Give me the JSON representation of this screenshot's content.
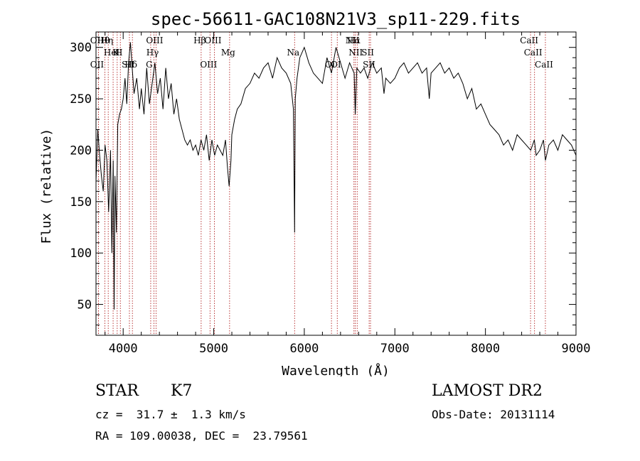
{
  "chart_data": {
    "type": "line",
    "title": "spec-56611-GAC108N21V3_sp11-229.fits",
    "xlabel": "Wavelength (Å)",
    "ylabel": "Flux (relative)",
    "xlim": [
      3700,
      9000
    ],
    "ylim": [
      20,
      315
    ],
    "xticks": [
      4000,
      5000,
      6000,
      7000,
      8000,
      9000
    ],
    "yticks": [
      50,
      100,
      150,
      200,
      250,
      300
    ],
    "grid": false,
    "line_color": "#000000",
    "marker_color": "#b22222",
    "spectrum": {
      "x": [
        3700,
        3720,
        3740,
        3760,
        3780,
        3800,
        3820,
        3840,
        3860,
        3875,
        3890,
        3900,
        3910,
        3925,
        3940,
        3960,
        3980,
        4000,
        4020,
        4040,
        4060,
        4080,
        4100,
        4120,
        4150,
        4180,
        4200,
        4230,
        4260,
        4290,
        4320,
        4350,
        4380,
        4410,
        4440,
        4470,
        4500,
        4530,
        4560,
        4590,
        4620,
        4650,
        4680,
        4710,
        4740,
        4770,
        4800,
        4830,
        4860,
        4890,
        4920,
        4950,
        4980,
        5010,
        5040,
        5070,
        5100,
        5130,
        5150,
        5170,
        5190,
        5200,
        5230,
        5260,
        5300,
        5350,
        5400,
        5450,
        5500,
        5550,
        5600,
        5650,
        5700,
        5750,
        5800,
        5850,
        5880,
        5893,
        5900,
        5920,
        5950,
        6000,
        6050,
        6100,
        6150,
        6200,
        6250,
        6300,
        6350,
        6400,
        6450,
        6500,
        6550,
        6563,
        6580,
        6620,
        6660,
        6700,
        6750,
        6800,
        6850,
        6880,
        6900,
        6950,
        7000,
        7050,
        7100,
        7150,
        7200,
        7250,
        7300,
        7350,
        7380,
        7400,
        7450,
        7500,
        7550,
        7600,
        7650,
        7700,
        7750,
        7800,
        7850,
        7900,
        7950,
        8000,
        8050,
        8100,
        8150,
        8200,
        8250,
        8300,
        8350,
        8400,
        8450,
        8500,
        8540,
        8560,
        8600,
        8640,
        8662,
        8700,
        8750,
        8800,
        8850,
        8900,
        8950,
        9000
      ],
      "y": [
        170,
        220,
        195,
        175,
        160,
        205,
        190,
        140,
        200,
        100,
        190,
        45,
        175,
        120,
        225,
        235,
        240,
        250,
        270,
        245,
        285,
        305,
        280,
        255,
        270,
        240,
        260,
        235,
        280,
        245,
        265,
        285,
        255,
        270,
        240,
        280,
        250,
        265,
        235,
        250,
        230,
        220,
        210,
        205,
        210,
        200,
        205,
        195,
        210,
        200,
        215,
        190,
        210,
        195,
        205,
        200,
        195,
        210,
        185,
        165,
        190,
        215,
        230,
        240,
        245,
        260,
        265,
        275,
        270,
        280,
        285,
        270,
        290,
        280,
        275,
        265,
        240,
        120,
        250,
        270,
        290,
        300,
        285,
        275,
        270,
        265,
        290,
        275,
        300,
        285,
        270,
        285,
        275,
        235,
        280,
        275,
        280,
        270,
        285,
        275,
        280,
        255,
        270,
        265,
        270,
        280,
        285,
        275,
        280,
        285,
        275,
        280,
        250,
        275,
        280,
        285,
        275,
        280,
        270,
        275,
        265,
        250,
        260,
        240,
        245,
        235,
        225,
        220,
        215,
        205,
        210,
        200,
        215,
        210,
        205,
        200,
        210,
        195,
        200,
        210,
        190,
        205,
        210,
        200,
        215,
        210,
        205,
        195
      ]
    },
    "lines": [
      {
        "label": "Hθ",
        "x": 3798
      },
      {
        "label": "K",
        "x": 3934
      },
      {
        "label": "Hδ",
        "x": 4102
      },
      {
        "label": "OII",
        "x": 3727
      },
      {
        "label": "HeI",
        "x": 3889
      },
      {
        "label": "SII",
        "x": 4069
      },
      {
        "label": "OIII",
        "x": 4363
      },
      {
        "label": "Hγ",
        "x": 4340
      },
      {
        "label": "OIII",
        "x": 4959
      },
      {
        "label": "OIII",
        "x": 5007
      },
      {
        "label": "Na",
        "x": 5893
      },
      {
        "label": "OI",
        "x": 6300
      },
      {
        "label": "Hα",
        "x": 6563
      },
      {
        "label": "SII",
        "x": 6716
      },
      {
        "label": "OII",
        "x": 3727
      },
      {
        "label": "Hη",
        "x": 3835
      },
      {
        "label": "H",
        "x": 3969
      },
      {
        "label": "G",
        "x": 4304
      },
      {
        "label": "Hβ",
        "x": 4861
      },
      {
        "label": "Mg",
        "x": 5175
      },
      {
        "label": "OI",
        "x": 6364
      },
      {
        "label": "NII",
        "x": 6548
      },
      {
        "label": "NII",
        "x": 6584
      },
      {
        "label": "SII",
        "x": 6731
      },
      {
        "label": "CaII",
        "x": 8498
      },
      {
        "label": "CaII",
        "x": 8542
      },
      {
        "label": "CaII",
        "x": 8662
      }
    ]
  },
  "info": {
    "object_type": "STAR",
    "subclass": "K7",
    "survey": "LAMOST DR2",
    "redshift": "cz =  31.7 ±  1.3 km/s",
    "obs_date": "Obs-Date: 20131114",
    "coords": "RA = 109.00038, DEC =  23.79561"
  }
}
